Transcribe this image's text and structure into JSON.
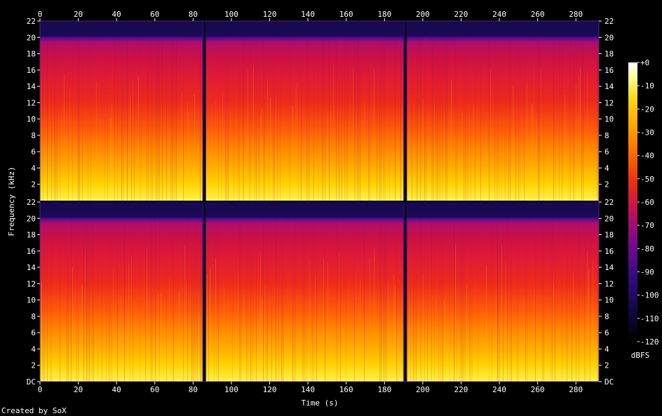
{
  "chart_data": {
    "type": "heatmap",
    "title": "",
    "xlabel": "Time (s)",
    "ylabel": "Frequency (kHz)",
    "xlim": [
      0,
      292
    ],
    "ylim_khz": [
      0,
      22
    ],
    "x_ticks": [
      0,
      20,
      40,
      60,
      80,
      100,
      120,
      140,
      160,
      180,
      200,
      220,
      240,
      260,
      280
    ],
    "y_tick_labels": [
      "DC",
      "2",
      "4",
      "6",
      "8",
      "10",
      "12",
      "14",
      "16",
      "18",
      "20",
      "22"
    ],
    "channels": 2,
    "colorbar": {
      "label": "dBFS",
      "ticks": [
        "+0",
        "-10",
        "-20",
        "-30",
        "-40",
        "-50",
        "-60",
        "-70",
        "-80",
        "-90",
        "-100",
        "-110",
        "-120"
      ],
      "range": [
        -120,
        0
      ]
    },
    "gaps_s": [
      86,
      191
    ],
    "footer": "Created by SoX"
  }
}
